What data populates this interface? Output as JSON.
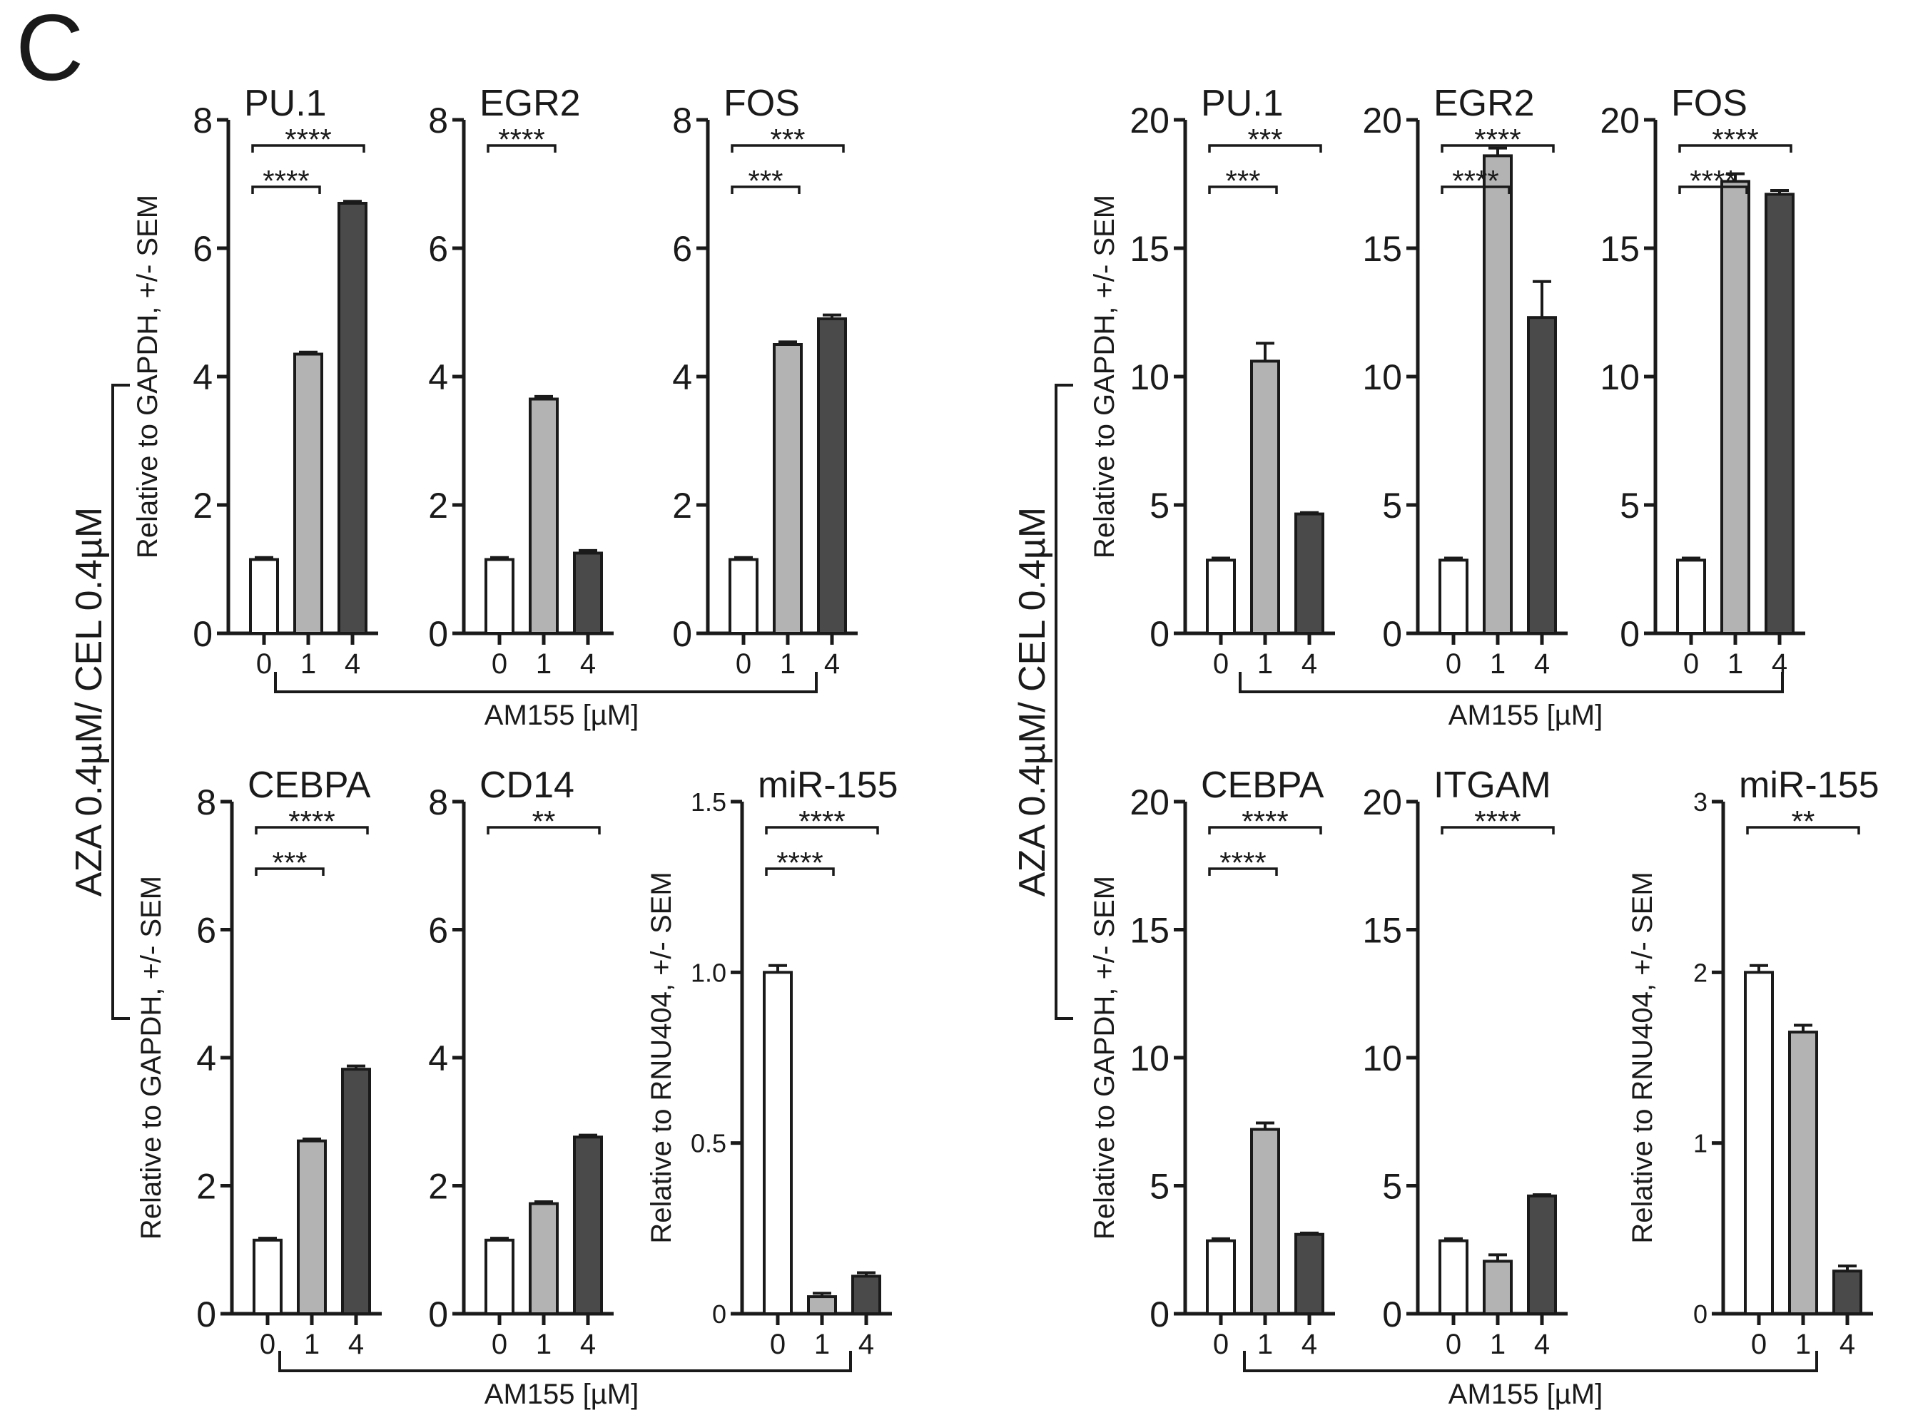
{
  "panel_label": "C",
  "group_label": "AZA 0.4µM/ CEL 0.4µM",
  "xlabel": "AM155 [µM]",
  "categories": [
    "0",
    "1",
    "4"
  ],
  "colors": {
    "bar_0": "#ffffff",
    "bar_1": "#b3b3b3",
    "bar_4": "#4a4a4a",
    "ink": "#1a1a1a"
  },
  "chart_data": [
    {
      "type": "bar",
      "title": "PU.1",
      "ylabel": "Relative to GAPDH, +/- SEM",
      "ylim": [
        0,
        8
      ],
      "yticks": [
        "0",
        "2",
        "4",
        "6",
        "8"
      ],
      "categories": [
        "0",
        "1",
        "4"
      ],
      "values": [
        1.15,
        4.35,
        6.7
      ],
      "errors": [
        0.03,
        0.03,
        0.03
      ],
      "significance": [
        {
          "from": 0,
          "to": 2,
          "label": "****"
        },
        {
          "from": 0,
          "to": 1,
          "label": "****"
        }
      ]
    },
    {
      "type": "bar",
      "title": "EGR2",
      "ylabel": "",
      "ylim": [
        0,
        8
      ],
      "yticks": [
        "0",
        "2",
        "4",
        "6",
        "8"
      ],
      "categories": [
        "0",
        "1",
        "4"
      ],
      "values": [
        1.15,
        3.65,
        1.25
      ],
      "errors": [
        0.03,
        0.04,
        0.04
      ],
      "significance": [
        {
          "from": 0,
          "to": 1,
          "label": "****"
        }
      ]
    },
    {
      "type": "bar",
      "title": "FOS",
      "ylabel": "",
      "ylim": [
        0,
        8
      ],
      "yticks": [
        "0",
        "2",
        "4",
        "6",
        "8"
      ],
      "categories": [
        "0",
        "1",
        "4"
      ],
      "values": [
        1.15,
        4.5,
        4.9
      ],
      "errors": [
        0.03,
        0.04,
        0.06
      ],
      "significance": [
        {
          "from": 0,
          "to": 2,
          "label": "***"
        },
        {
          "from": 0,
          "to": 1,
          "label": "***"
        }
      ]
    },
    {
      "type": "bar",
      "title": "CEBPA",
      "ylabel": "Relative to GAPDH, +/- SEM",
      "ylim": [
        0,
        8
      ],
      "yticks": [
        "0",
        "2",
        "4",
        "6",
        "8"
      ],
      "categories": [
        "0",
        "1",
        "4"
      ],
      "values": [
        1.15,
        2.7,
        3.82
      ],
      "errors": [
        0.03,
        0.03,
        0.05
      ],
      "significance": [
        {
          "from": 0,
          "to": 2,
          "label": "****"
        },
        {
          "from": 0,
          "to": 1,
          "label": "***"
        }
      ]
    },
    {
      "type": "bar",
      "title": "CD14",
      "ylabel": "",
      "ylim": [
        0,
        8
      ],
      "yticks": [
        "0",
        "2",
        "4",
        "6",
        "8"
      ],
      "categories": [
        "0",
        "1",
        "4"
      ],
      "values": [
        1.15,
        1.72,
        2.76
      ],
      "errors": [
        0.03,
        0.03,
        0.03
      ],
      "significance": [
        {
          "from": 0,
          "to": 2,
          "label": "**"
        }
      ]
    },
    {
      "type": "bar",
      "title": "miR-155",
      "ylabel": "Relative to RNU404, +/- SEM",
      "ylim": [
        0,
        1.5
      ],
      "yticks": [
        "0",
        "0.5",
        "1.0",
        "1.5"
      ],
      "categories": [
        "0",
        "1",
        "4"
      ],
      "values": [
        1.0,
        0.05,
        0.11
      ],
      "errors": [
        0.02,
        0.01,
        0.01
      ],
      "significance": [
        {
          "from": 0,
          "to": 2,
          "label": "****"
        },
        {
          "from": 0,
          "to": 1,
          "label": "****"
        }
      ]
    },
    {
      "type": "bar",
      "title": "PU.1",
      "ylabel": "Relative to GAPDH, +/- SEM",
      "ylim": [
        0,
        20
      ],
      "yticks": [
        "0",
        "5",
        "10",
        "15",
        "20"
      ],
      "categories": [
        "0",
        "1",
        "4"
      ],
      "values": [
        2.85,
        10.6,
        4.65
      ],
      "errors": [
        0.08,
        0.7,
        0.05
      ],
      "significance": [
        {
          "from": 0,
          "to": 2,
          "label": "***"
        },
        {
          "from": 0,
          "to": 1,
          "label": "***"
        }
      ]
    },
    {
      "type": "bar",
      "title": "EGR2",
      "ylabel": "",
      "ylim": [
        0,
        20
      ],
      "yticks": [
        "0",
        "5",
        "10",
        "15",
        "20"
      ],
      "categories": [
        "0",
        "1",
        "4"
      ],
      "values": [
        2.85,
        18.6,
        12.3
      ],
      "errors": [
        0.08,
        0.3,
        1.4
      ],
      "significance": [
        {
          "from": 0,
          "to": 2,
          "label": "****"
        },
        {
          "from": 0,
          "to": 1,
          "label": "****"
        }
      ]
    },
    {
      "type": "bar",
      "title": "FOS",
      "ylabel": "",
      "ylim": [
        0,
        20
      ],
      "yticks": [
        "0",
        "5",
        "10",
        "15",
        "20"
      ],
      "categories": [
        "0",
        "1",
        "4"
      ],
      "values": [
        2.85,
        17.6,
        17.1
      ],
      "errors": [
        0.08,
        0.3,
        0.15
      ],
      "significance": [
        {
          "from": 0,
          "to": 2,
          "label": "****"
        },
        {
          "from": 0,
          "to": 1,
          "label": "****"
        }
      ]
    },
    {
      "type": "bar",
      "title": "CEBPA",
      "ylabel": "Relative to GAPDH, +/- SEM",
      "ylim": [
        0,
        20
      ],
      "yticks": [
        "0",
        "5",
        "10",
        "15",
        "20"
      ],
      "categories": [
        "0",
        "1",
        "4"
      ],
      "values": [
        2.85,
        7.2,
        3.1
      ],
      "errors": [
        0.08,
        0.25,
        0.05
      ],
      "significance": [
        {
          "from": 0,
          "to": 2,
          "label": "****"
        },
        {
          "from": 0,
          "to": 1,
          "label": "****"
        }
      ]
    },
    {
      "type": "bar",
      "title": "ITGAM",
      "ylabel": "",
      "ylim": [
        0,
        20
      ],
      "yticks": [
        "0",
        "5",
        "10",
        "15",
        "20"
      ],
      "categories": [
        "0",
        "1",
        "4"
      ],
      "values": [
        2.85,
        2.05,
        4.6
      ],
      "errors": [
        0.08,
        0.25,
        0.05
      ],
      "significance": [
        {
          "from": 0,
          "to": 2,
          "label": "****"
        }
      ]
    },
    {
      "type": "bar",
      "title": "miR-155",
      "ylabel": "Relative to RNU404, +/- SEM",
      "ylim": [
        0,
        3
      ],
      "yticks": [
        "0",
        "1",
        "2",
        "3"
      ],
      "categories": [
        "0",
        "1",
        "4"
      ],
      "values": [
        2.0,
        1.65,
        0.25
      ],
      "errors": [
        0.04,
        0.04,
        0.03
      ],
      "significance": [
        {
          "from": 0,
          "to": 2,
          "label": "**"
        }
      ]
    }
  ]
}
